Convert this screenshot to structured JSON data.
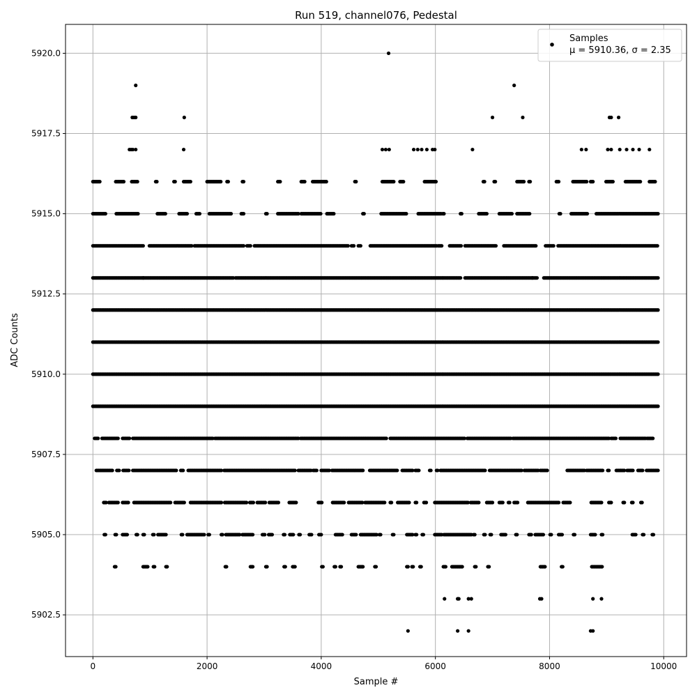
{
  "chart_data": {
    "type": "scatter",
    "title": "Run 519, channel076, Pedestal",
    "xlabel": "Sample #",
    "ylabel": "ADC Counts",
    "xlim": [
      -480,
      10400
    ],
    "ylim": [
      5901.2,
      5920.9
    ],
    "x_ticks": [
      0,
      2000,
      4000,
      6000,
      8000,
      10000
    ],
    "y_ticks": [
      5902.5,
      5905.0,
      5907.5,
      5910.0,
      5912.5,
      5915.0,
      5917.5,
      5920.0
    ],
    "x_tick_labels": [
      "0",
      "2000",
      "4000",
      "6000",
      "8000",
      "10000"
    ],
    "y_tick_labels": [
      "5902.5",
      "5905.0",
      "5907.5",
      "5910.0",
      "5912.5",
      "5915.0",
      "5917.5",
      "5920.0"
    ],
    "grid": true,
    "legend": {
      "placement": "upper right",
      "series_name": "Samples",
      "stats_text": "μ = 5910.36, σ = 2.35"
    },
    "marker_color": "#000000",
    "series": [
      {
        "name": "Samples",
        "x_range": [
          0,
          9900
        ],
        "points": [
          {
            "y": 5920,
            "x": [
              5180
            ]
          },
          {
            "y": 5919,
            "x": [
              750,
              7380
            ]
          },
          {
            "y": 5918,
            "x": [
              690,
              720,
              750,
              1600,
              7000,
              7530,
              9050,
              9080,
              9210
            ]
          },
          {
            "y": 5917,
            "x": [
              640,
              670,
              700,
              750,
              1590,
              5070,
              5130,
              5190,
              5620,
              5690,
              5760,
              5850,
              5950,
              5990,
              6650,
              8560,
              8640,
              9020,
              9080,
              9230,
              9350,
              9460,
              9570,
              9750
            ]
          },
          {
            "y": 5902,
            "x": [
              5520,
              6390,
              6580,
              8720,
              8760
            ]
          },
          {
            "y": 5903,
            "x": [
              6160,
              6390,
              6410,
              6580,
              6630,
              7830,
              7860,
              8760,
              8910
            ]
          }
        ],
        "dense_levels": [
          {
            "y": 5916,
            "x_ranges": [
              [
                0,
                130
              ],
              [
                400,
                550
              ],
              [
                680,
                780
              ],
              [
                1100,
                1120
              ],
              [
                1420,
                1440
              ],
              [
                1590,
                1720
              ],
              [
                2000,
                2250
              ],
              [
                2350,
                2370
              ],
              [
                2620,
                2640
              ],
              [
                3240,
                3290
              ],
              [
                3650,
                3720
              ],
              [
                3850,
                4090
              ],
              [
                4590,
                4610
              ],
              [
                5070,
                5280
              ],
              [
                5380,
                5450
              ],
              [
                5810,
                6020
              ],
              [
                6840,
                6860
              ],
              [
                7030,
                7050
              ],
              [
                7430,
                7550
              ],
              [
                7640,
                7660
              ],
              [
                8120,
                8170
              ],
              [
                8410,
                8660
              ],
              [
                8720,
                8760
              ],
              [
                8990,
                9120
              ],
              [
                9330,
                9600
              ],
              [
                9750,
                9850
              ]
            ]
          },
          {
            "y": 5915,
            "x_ranges": [
              [
                0,
                230
              ],
              [
                410,
                800
              ],
              [
                1130,
                1270
              ],
              [
                1510,
                1660
              ],
              [
                1810,
                1880
              ],
              [
                2040,
                2420
              ],
              [
                2600,
                2640
              ],
              [
                3030,
                3050
              ],
              [
                3240,
                3600
              ],
              [
                3650,
                4000
              ],
              [
                4100,
                4230
              ],
              [
                4730,
                4750
              ],
              [
                5050,
                5500
              ],
              [
                5700,
                6100
              ],
              [
                6130,
                6150
              ],
              [
                6440,
                6460
              ],
              [
                6760,
                6900
              ],
              [
                7120,
                7350
              ],
              [
                7430,
                7650
              ],
              [
                8170,
                8190
              ],
              [
                8380,
                8660
              ],
              [
                8820,
                9900
              ]
            ]
          },
          {
            "y": 5914,
            "x_ranges": [
              [
                0,
                890
              ],
              [
                990,
                1740
              ],
              [
                1780,
                2650
              ],
              [
                2700,
                2770
              ],
              [
                2830,
                4480
              ],
              [
                4530,
                4580
              ],
              [
                4650,
                4700
              ],
              [
                4860,
                6030
              ],
              [
                6050,
                6120
              ],
              [
                6250,
                6460
              ],
              [
                6520,
                7060
              ],
              [
                7200,
                7770
              ],
              [
                7930,
                8080
              ],
              [
                8150,
                9900
              ]
            ]
          },
          {
            "y": 5913,
            "x_ranges": [
              [
                0,
                880
              ],
              [
                880,
                2460
              ],
              [
                2500,
                2660
              ],
              [
                2680,
                5570
              ],
              [
                5580,
                6360
              ],
              [
                6380,
                6450
              ],
              [
                6520,
                7700
              ],
              [
                7700,
                7790
              ],
              [
                7900,
                9900
              ]
            ]
          },
          {
            "y": 5912,
            "x_ranges": [
              [
                0,
                9900
              ]
            ]
          },
          {
            "y": 5911,
            "x_ranges": [
              [
                0,
                9900
              ]
            ]
          },
          {
            "y": 5910,
            "x_ranges": [
              [
                0,
                9900
              ]
            ]
          },
          {
            "y": 5909,
            "x_ranges": [
              [
                0,
                9900
              ]
            ]
          },
          {
            "y": 5908,
            "x_ranges": [
              [
                30,
                90
              ],
              [
                160,
                440
              ],
              [
                520,
                650
              ],
              [
                700,
                2100
              ],
              [
                2140,
                3600
              ],
              [
                3640,
                5150
              ],
              [
                5210,
                6520
              ],
              [
                6560,
                7330
              ],
              [
                7360,
                9050
              ],
              [
                9080,
                9160
              ],
              [
                9240,
                9680
              ],
              [
                9710,
                9810
              ]
            ]
          },
          {
            "y": 5907,
            "x_ranges": [
              [
                60,
                350
              ],
              [
                420,
                470
              ],
              [
                530,
                640
              ],
              [
                700,
                1460
              ],
              [
                1540,
                1580
              ],
              [
                1670,
                2260
              ],
              [
                2300,
                3550
              ],
              [
                3600,
                3820
              ],
              [
                3860,
                3930
              ],
              [
                4000,
                4150
              ],
              [
                4190,
                4740
              ],
              [
                4850,
                5330
              ],
              [
                5420,
                5610
              ],
              [
                5650,
                5720
              ],
              [
                5900,
                5920
              ],
              [
                6020,
                6040
              ],
              [
                6090,
                6880
              ],
              [
                6950,
                7510
              ],
              [
                7560,
                7810
              ],
              [
                7840,
                7970
              ],
              [
                8310,
                8610
              ],
              [
                8650,
                8940
              ],
              [
                9020,
                9040
              ],
              [
                9170,
                9310
              ],
              [
                9360,
                9470
              ],
              [
                9550,
                9640
              ],
              [
                9700,
                9900
              ]
            ]
          },
          {
            "y": 5906,
            "x_ranges": [
              [
                190,
                230
              ],
              [
                280,
                450
              ],
              [
                520,
                620
              ],
              [
                720,
                1360
              ],
              [
                1440,
                1600
              ],
              [
                1710,
                2260
              ],
              [
                2310,
                2690
              ],
              [
                2750,
                2820
              ],
              [
                2880,
                3020
              ],
              [
                3090,
                3260
              ],
              [
                3440,
                3560
              ],
              [
                3950,
                4010
              ],
              [
                4200,
                4410
              ],
              [
                4480,
                4730
              ],
              [
                4770,
                5110
              ],
              [
                5210,
                5240
              ],
              [
                5340,
                5550
              ],
              [
                5650,
                5680
              ],
              [
                5800,
                5850
              ],
              [
                5990,
                6580
              ],
              [
                6620,
                6760
              ],
              [
                6900,
                7000
              ],
              [
                7120,
                7180
              ],
              [
                7280,
                7310
              ],
              [
                7380,
                7440
              ],
              [
                7620,
                8170
              ],
              [
                8240,
                8360
              ],
              [
                8730,
                8910
              ],
              [
                9040,
                9080
              ],
              [
                9290,
                9310
              ],
              [
                9440,
                9460
              ],
              [
                9600,
                9620
              ]
            ]
          },
          {
            "y": 5905,
            "x_ranges": [
              [
                200,
                220
              ],
              [
                390,
                410
              ],
              [
                520,
                600
              ],
              [
                760,
                780
              ],
              [
                880,
                900
              ],
              [
                1050,
                1070
              ],
              [
                1140,
                1280
              ],
              [
                1550,
                1580
              ],
              [
                1650,
                1950
              ],
              [
                2020,
                2040
              ],
              [
                2250,
                2280
              ],
              [
                2330,
                2580
              ],
              [
                2620,
                2800
              ],
              [
                2970,
                3010
              ],
              [
                3080,
                3150
              ],
              [
                3340,
                3360
              ],
              [
                3450,
                3520
              ],
              [
                3610,
                3630
              ],
              [
                3790,
                3840
              ],
              [
                3960,
                4000
              ],
              [
                4250,
                4380
              ],
              [
                4530,
                4620
              ],
              [
                4690,
                4980
              ],
              [
                5020,
                5040
              ],
              [
                5250,
                5270
              ],
              [
                5500,
                5600
              ],
              [
                5650,
                5670
              ],
              [
                5770,
                5790
              ],
              [
                5990,
                6120
              ],
              [
                6150,
                6640
              ],
              [
                6670,
                6700
              ],
              [
                6850,
                6870
              ],
              [
                6960,
                6980
              ],
              [
                7150,
                7230
              ],
              [
                7410,
                7430
              ],
              [
                7640,
                7690
              ],
              [
                7750,
                7900
              ],
              [
                8010,
                8030
              ],
              [
                8160,
                8230
              ],
              [
                8420,
                8440
              ],
              [
                8720,
                8800
              ],
              [
                8910,
                8930
              ],
              [
                9450,
                9520
              ],
              [
                9630,
                9650
              ],
              [
                9800,
                9830
              ]
            ]
          },
          {
            "y": 5904,
            "x_ranges": [
              [
                380,
                400
              ],
              [
                880,
                960
              ],
              [
                1060,
                1080
              ],
              [
                1280,
                1300
              ],
              [
                2320,
                2340
              ],
              [
                2760,
                2800
              ],
              [
                3030,
                3050
              ],
              [
                3350,
                3370
              ],
              [
                3500,
                3550
              ],
              [
                4010,
                4030
              ],
              [
                4230,
                4250
              ],
              [
                4330,
                4360
              ],
              [
                4650,
                4740
              ],
              [
                4940,
                4960
              ],
              [
                5500,
                5520
              ],
              [
                5590,
                5610
              ],
              [
                5730,
                5750
              ],
              [
                6140,
                6190
              ],
              [
                6290,
                6480
              ],
              [
                6690,
                6710
              ],
              [
                6920,
                6940
              ],
              [
                7840,
                7920
              ],
              [
                8210,
                8230
              ],
              [
                8740,
                8930
              ]
            ]
          }
        ]
      }
    ]
  }
}
